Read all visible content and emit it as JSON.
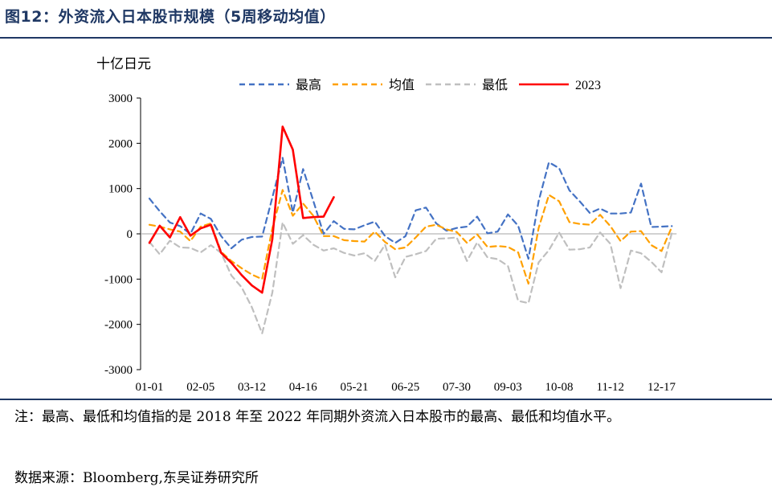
{
  "figure": {
    "title": "图12：外资流入日本股市规模（5周移动均值）",
    "note": "注：最高、最低和均值指的是 2018 年至 2022 年同期外资流入日本股市的最高、最低和均值水平。",
    "source": "数据来源：Bloomberg,东吴证券研究所"
  },
  "chart_data": {
    "type": "line",
    "unit_label": "十亿日元",
    "ylim": [
      -3000,
      3000
    ],
    "yticks": [
      -3000,
      -2000,
      -1000,
      0,
      1000,
      2000,
      3000
    ],
    "x_tick_labels": [
      "01-01",
      "02-05",
      "03-12",
      "04-16",
      "05-21",
      "06-25",
      "07-30",
      "09-03",
      "10-08",
      "11-12",
      "12-17"
    ],
    "x_tick_week_index": [
      0,
      5,
      10,
      15,
      20,
      25,
      30,
      35,
      40,
      45,
      50
    ],
    "legend_position": "top",
    "grid": false,
    "series": [
      {
        "name": "最高",
        "color": "#4472c4",
        "dash": "dashed",
        "values": [
          780,
          500,
          250,
          170,
          0,
          450,
          330,
          -50,
          -320,
          -130,
          -70,
          -60,
          800,
          1680,
          470,
          1430,
          730,
          0,
          280,
          110,
          100,
          190,
          270,
          -50,
          -200,
          -50,
          520,
          580,
          230,
          70,
          130,
          160,
          380,
          10,
          50,
          430,
          180,
          -550,
          720,
          1580,
          1450,
          960,
          720,
          460,
          560,
          450,
          450,
          470,
          1110,
          150,
          160,
          170
        ]
      },
      {
        "name": "均值",
        "color": "#ffa000",
        "dash": "dashed",
        "values": [
          200,
          160,
          100,
          50,
          -160,
          160,
          230,
          -400,
          -600,
          -760,
          -900,
          -1000,
          120,
          970,
          400,
          670,
          400,
          -50,
          -50,
          -140,
          -160,
          -170,
          50,
          -180,
          -340,
          -300,
          -80,
          160,
          200,
          100,
          40,
          -200,
          -10,
          -290,
          -270,
          -290,
          -410,
          -1100,
          130,
          860,
          720,
          260,
          220,
          200,
          420,
          170,
          -160,
          50,
          60,
          -250,
          -380,
          150
        ]
      },
      {
        "name": "最低",
        "color": "#bfbfbf",
        "dash": "dashed",
        "values": [
          -180,
          -450,
          -150,
          -300,
          -310,
          -410,
          -250,
          -420,
          -920,
          -1180,
          -1620,
          -2200,
          -1300,
          250,
          -220,
          -30,
          -240,
          -370,
          -320,
          -420,
          -480,
          -430,
          -600,
          -240,
          -960,
          -510,
          -450,
          -380,
          -110,
          -100,
          -80,
          -600,
          -190,
          -520,
          -560,
          -710,
          -1480,
          -1530,
          -630,
          -360,
          30,
          -350,
          -340,
          -300,
          30,
          -220,
          -1200,
          -370,
          -430,
          -620,
          -850,
          20
        ]
      },
      {
        "name": "2023",
        "color": "#ff0000",
        "dash": "solid",
        "values": [
          -200,
          180,
          -80,
          370,
          -40,
          120,
          200,
          -420,
          -640,
          -910,
          -1140,
          -1300,
          -120,
          2370,
          1860,
          350,
          370,
          380,
          810
        ]
      }
    ]
  }
}
